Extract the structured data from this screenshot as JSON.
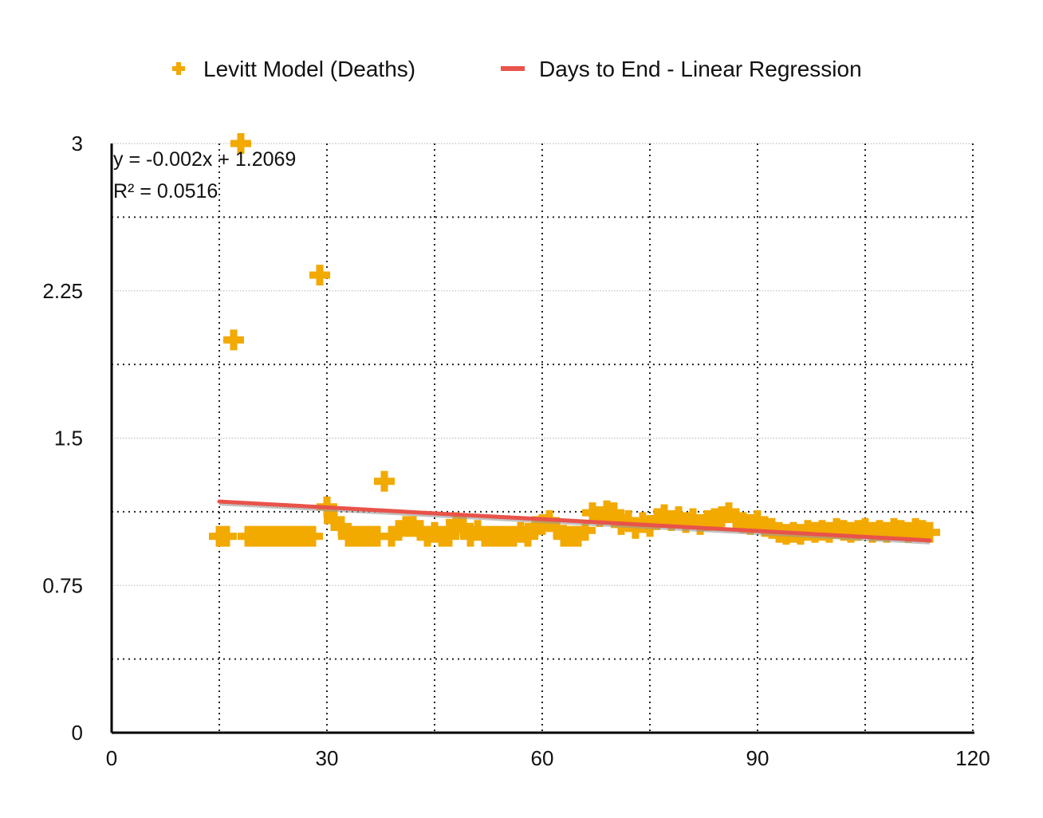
{
  "chart_data": {
    "type": "scatter",
    "title": "",
    "xlabel": "",
    "ylabel": "",
    "xlim": [
      0,
      120
    ],
    "ylim": [
      0,
      3
    ],
    "x_ticks": [
      "0",
      "30",
      "60",
      "90",
      "120"
    ],
    "y_ticks": [
      "0",
      "0.75",
      "1.5",
      "2.25",
      "3"
    ],
    "grid": true,
    "legend_position": "top",
    "series": [
      {
        "name": "Levitt Model (Deaths)",
        "kind": "scatter",
        "marker": "plus",
        "color": "#F2A900",
        "points": [
          [
            15,
            1.0
          ],
          [
            16,
            1.0
          ],
          [
            17,
            2.0
          ],
          [
            18,
            3.0
          ],
          [
            19,
            1.0
          ],
          [
            20,
            1.0
          ],
          [
            21,
            1.0
          ],
          [
            22,
            1.0
          ],
          [
            23,
            1.0
          ],
          [
            24,
            1.0
          ],
          [
            25,
            1.0
          ],
          [
            26,
            1.0
          ],
          [
            27,
            1.0
          ],
          [
            28,
            1.0
          ],
          [
            29,
            2.33
          ],
          [
            30,
            1.15
          ],
          [
            31,
            1.08
          ],
          [
            32,
            1.05
          ],
          [
            33,
            1.0
          ],
          [
            34,
            1.0
          ],
          [
            35,
            1.0
          ],
          [
            36,
            1.0
          ],
          [
            37,
            1.0
          ],
          [
            38,
            1.28
          ],
          [
            39,
            1.0
          ],
          [
            40,
            1.03
          ],
          [
            41,
            1.05
          ],
          [
            42,
            1.05
          ],
          [
            43,
            1.03
          ],
          [
            44,
            1.0
          ],
          [
            45,
            1.02
          ],
          [
            46,
            1.0
          ],
          [
            47,
            1.0
          ],
          [
            48,
            1.07
          ],
          [
            49,
            1.05
          ],
          [
            50,
            1.0
          ],
          [
            51,
            1.03
          ],
          [
            52,
            1.0
          ],
          [
            53,
            1.0
          ],
          [
            54,
            1.0
          ],
          [
            55,
            1.0
          ],
          [
            56,
            1.0
          ],
          [
            57,
            1.02
          ],
          [
            58,
            1.0
          ],
          [
            59,
            1.05
          ],
          [
            60,
            1.06
          ],
          [
            61,
            1.08
          ],
          [
            62,
            1.04
          ],
          [
            63,
            1.0
          ],
          [
            64,
            1.0
          ],
          [
            65,
            1.0
          ],
          [
            66,
            1.03
          ],
          [
            67,
            1.12
          ],
          [
            68,
            1.1
          ],
          [
            69,
            1.13
          ],
          [
            70,
            1.12
          ],
          [
            71,
            1.06
          ],
          [
            72,
            1.08
          ],
          [
            73,
            1.04
          ],
          [
            74,
            1.07
          ],
          [
            75,
            1.05
          ],
          [
            76,
            1.09
          ],
          [
            77,
            1.11
          ],
          [
            78,
            1.08
          ],
          [
            79,
            1.1
          ],
          [
            80,
            1.07
          ],
          [
            81,
            1.09
          ],
          [
            82,
            1.06
          ],
          [
            83,
            1.08
          ],
          [
            84,
            1.09
          ],
          [
            85,
            1.1
          ],
          [
            86,
            1.12
          ],
          [
            87,
            1.09
          ],
          [
            88,
            1.07
          ],
          [
            89,
            1.06
          ],
          [
            90,
            1.08
          ],
          [
            91,
            1.05
          ],
          [
            92,
            1.04
          ],
          [
            93,
            1.02
          ],
          [
            94,
            1.01
          ],
          [
            95,
            1.02
          ],
          [
            96,
            1.01
          ],
          [
            97,
            1.03
          ],
          [
            98,
            1.02
          ],
          [
            99,
            1.03
          ],
          [
            100,
            1.02
          ],
          [
            101,
            1.04
          ],
          [
            102,
            1.03
          ],
          [
            103,
            1.02
          ],
          [
            104,
            1.03
          ],
          [
            105,
            1.04
          ],
          [
            106,
            1.02
          ],
          [
            107,
            1.03
          ],
          [
            108,
            1.02
          ],
          [
            109,
            1.04
          ],
          [
            110,
            1.03
          ],
          [
            111,
            1.02
          ],
          [
            112,
            1.04
          ],
          [
            113,
            1.03
          ],
          [
            114,
            1.02
          ]
        ]
      },
      {
        "name": "Days to End - Linear Regression",
        "kind": "line",
        "color": "#E8534A",
        "x": [
          15,
          114
        ],
        "y": [
          1.177,
          0.979
        ]
      }
    ],
    "annotations": [
      "y = -0.002x + 1.2069",
      "R² = 0.0516"
    ]
  }
}
